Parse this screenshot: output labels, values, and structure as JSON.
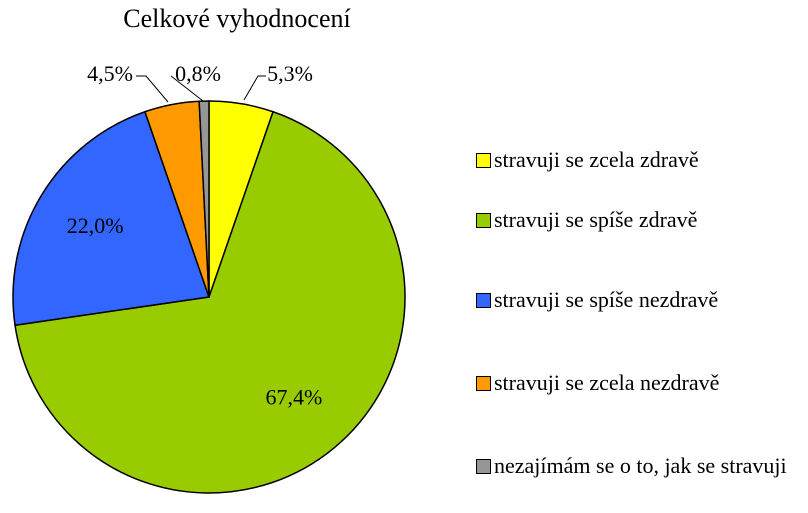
{
  "chart_data": {
    "type": "pie",
    "title": "Celkové vyhodnocení",
    "categories": [
      "stravuji se zcela zdravě",
      "stravuji se spíše zdravě",
      "stravuji se spíše nezdravě",
      "stravuji se zcela nezdravě",
      "nezajímám se o to, jak se stravuji"
    ],
    "values": [
      5.3,
      67.4,
      22.0,
      4.5,
      0.8
    ],
    "value_labels": [
      "5,3%",
      "67,4%",
      "22,0%",
      "4,5%",
      "0,8%"
    ],
    "colors": [
      "#ffff00",
      "#99cc00",
      "#3366ff",
      "#ff9900",
      "#969696"
    ],
    "legend": "right"
  }
}
